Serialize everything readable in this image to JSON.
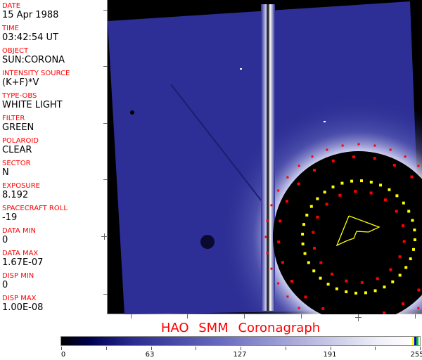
{
  "info_fields": [
    {
      "label": "DATE",
      "value": "15 Apr 1988"
    },
    {
      "label": "TIME",
      "value": "03:42:54 UT"
    },
    {
      "label": "OBJECT",
      "value": "SUN:CORONA"
    },
    {
      "label": "INTENSITY SOURCE",
      "value": "(K+F)*V"
    },
    {
      "label": "TYPE-OBS",
      "value": "WHITE LIGHT"
    },
    {
      "label": "FILTER",
      "value": "GREEN"
    },
    {
      "label": "POLAROID",
      "value": "CLEAR"
    },
    {
      "label": "SECTOR",
      "value": "N"
    },
    {
      "label": "EXPOSURE",
      "value": "8.192"
    },
    {
      "label": "SPACECRAFT ROLL",
      "value": "-19"
    },
    {
      "label": "DATA MIN",
      "value": "0"
    },
    {
      "label": "DATA MAX",
      "value": "1.67E-07"
    },
    {
      "label": "DISP MIN",
      "value": "0"
    },
    {
      "label": "DISP MAX",
      "value": "1.00E-08"
    }
  ],
  "title": "HAO SMM Coronagraph",
  "colorbar": {
    "labels": [
      "0",
      "63",
      "127",
      "191",
      "255"
    ],
    "min": 0,
    "max": 255
  },
  "colors": {
    "label": "#ff0000",
    "image_blue": "#2a2c92",
    "overlay_yellow": "#ffff00",
    "overlay_red": "#ff0000"
  }
}
